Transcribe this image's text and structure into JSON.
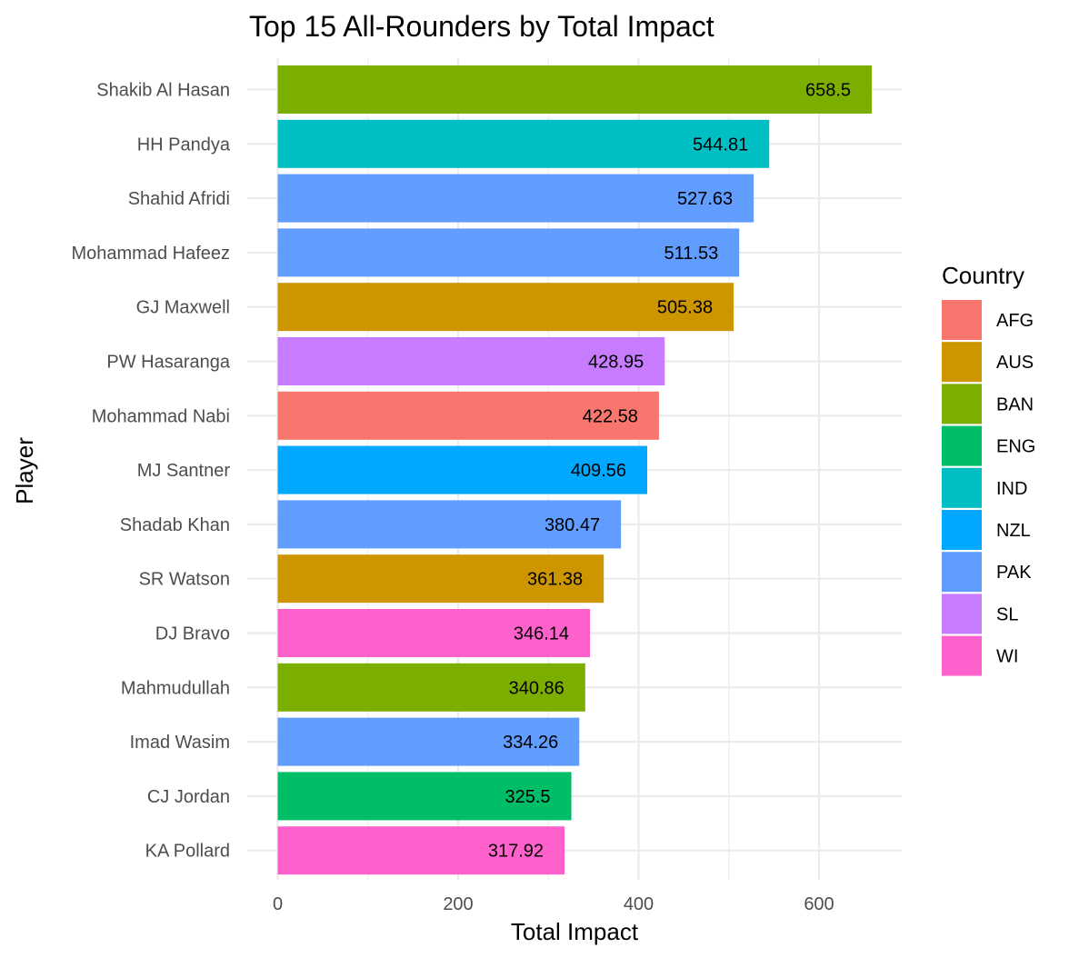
{
  "chart_data": {
    "type": "bar",
    "orientation": "horizontal",
    "title": "Top 15 All-Rounders by Total Impact",
    "xlabel": "Total Impact",
    "ylabel": "Player",
    "xlim": [
      0,
      690
    ],
    "x_ticks": [
      0,
      200,
      400,
      600
    ],
    "grid": true,
    "legend": {
      "title": "Country",
      "position": "right",
      "items": [
        {
          "label": "AFG",
          "color": "#F8766D"
        },
        {
          "label": "AUS",
          "color": "#CD9600"
        },
        {
          "label": "BAN",
          "color": "#7CAE00"
        },
        {
          "label": "ENG",
          "color": "#00BE67"
        },
        {
          "label": "IND",
          "color": "#00BFC4"
        },
        {
          "label": "NZL",
          "color": "#00A9FF"
        },
        {
          "label": "PAK",
          "color": "#619CFF"
        },
        {
          "label": "SL",
          "color": "#C77CFF"
        },
        {
          "label": "WI",
          "color": "#FF61CC"
        }
      ]
    },
    "bars": [
      {
        "player": "Shakib Al Hasan",
        "value": 658.5,
        "label": "658.5",
        "country": "BAN"
      },
      {
        "player": "HH Pandya",
        "value": 544.81,
        "label": "544.81",
        "country": "IND"
      },
      {
        "player": "Shahid Afridi",
        "value": 527.63,
        "label": "527.63",
        "country": "PAK"
      },
      {
        "player": "Mohammad Hafeez",
        "value": 511.53,
        "label": "511.53",
        "country": "PAK"
      },
      {
        "player": "GJ Maxwell",
        "value": 505.38,
        "label": "505.38",
        "country": "AUS"
      },
      {
        "player": "PW Hasaranga",
        "value": 428.95,
        "label": "428.95",
        "country": "SL"
      },
      {
        "player": "Mohammad Nabi",
        "value": 422.58,
        "label": "422.58",
        "country": "AFG"
      },
      {
        "player": "MJ Santner",
        "value": 409.56,
        "label": "409.56",
        "country": "NZL"
      },
      {
        "player": "Shadab Khan",
        "value": 380.47,
        "label": "380.47",
        "country": "PAK"
      },
      {
        "player": "SR Watson",
        "value": 361.38,
        "label": "361.38",
        "country": "AUS"
      },
      {
        "player": "DJ Bravo",
        "value": 346.14,
        "label": "346.14",
        "country": "WI"
      },
      {
        "player": "Mahmudullah",
        "value": 340.86,
        "label": "340.86",
        "country": "BAN"
      },
      {
        "player": "Imad Wasim",
        "value": 334.26,
        "label": "334.26",
        "country": "PAK"
      },
      {
        "player": "CJ Jordan",
        "value": 325.5,
        "label": "325.5",
        "country": "ENG"
      },
      {
        "player": "KA Pollard",
        "value": 317.92,
        "label": "317.92",
        "country": "WI"
      }
    ]
  }
}
